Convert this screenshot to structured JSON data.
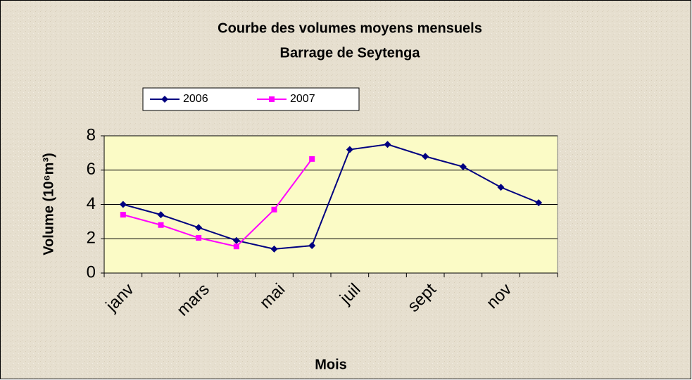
{
  "chart_data": {
    "type": "line",
    "title": "Courbe des volumes moyens mensuels",
    "subtitle": "Barrage de Seytenga",
    "x_label": "Mois",
    "y_label": "Volume (10⁶m³)",
    "categories": [
      "janv",
      null,
      "mars",
      null,
      "mai",
      null,
      "juil",
      null,
      "sept",
      null,
      "nov",
      null
    ],
    "series": [
      {
        "name": "2006",
        "color": "#000080",
        "marker": "diamond",
        "values": [
          4.0,
          3.4,
          2.65,
          1.9,
          1.4,
          1.6,
          7.2,
          7.5,
          6.8,
          6.2,
          5.0,
          4.1
        ]
      },
      {
        "name": "2007",
        "color": "#ff00ff",
        "marker": "square",
        "values": [
          3.4,
          2.8,
          2.05,
          1.55,
          3.7,
          6.65,
          null,
          null,
          null,
          null,
          null,
          null
        ]
      }
    ],
    "ylim": [
      0,
      8
    ],
    "yticks": [
      0,
      2,
      4,
      6,
      8
    ],
    "grid": true,
    "legend": "top"
  }
}
